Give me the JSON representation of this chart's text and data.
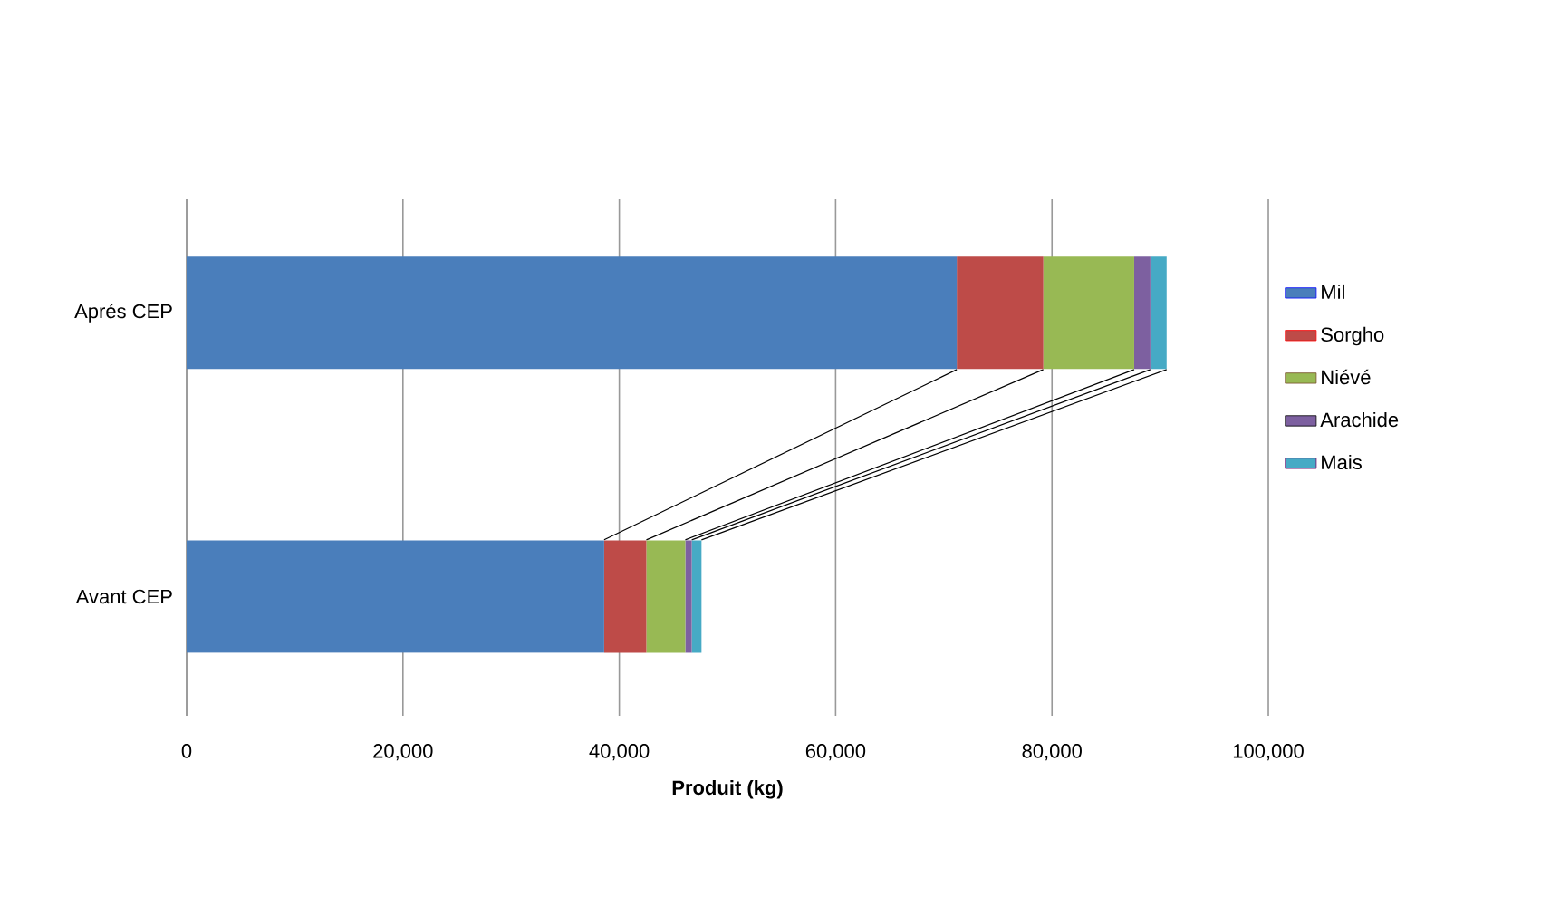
{
  "chart_data": {
    "type": "bar",
    "orientation": "horizontal",
    "stacked": true,
    "categories": [
      "Aprés CEP",
      "Avant CEP"
    ],
    "series": [
      {
        "name": "Mil",
        "color": "#4a7ebb",
        "values": [
          71200,
          38600
        ]
      },
      {
        "name": "Sorgho",
        "color": "#be4b48",
        "values": [
          8000,
          3900
        ]
      },
      {
        "name": "Niévé",
        "color": "#98b954",
        "values": [
          8400,
          3600
        ]
      },
      {
        "name": "Arachide",
        "color": "#7d60a0",
        "values": [
          1500,
          600
        ]
      },
      {
        "name": "Mais",
        "color": "#46aac5",
        "values": [
          1500,
          900
        ]
      }
    ],
    "xlabel": "Produit (kg)",
    "xlim": [
      0,
      100000
    ],
    "xticks": [
      0,
      {
        "value": 20000,
        "label": "20,000"
      },
      {
        "value": 40000,
        "label": "40,000"
      },
      {
        "value": 60000,
        "label": "60,000"
      },
      {
        "value": 80000,
        "label": "80,000"
      },
      {
        "value": 100000,
        "label": "100,000"
      }
    ],
    "grid": "x",
    "legend": "right"
  }
}
